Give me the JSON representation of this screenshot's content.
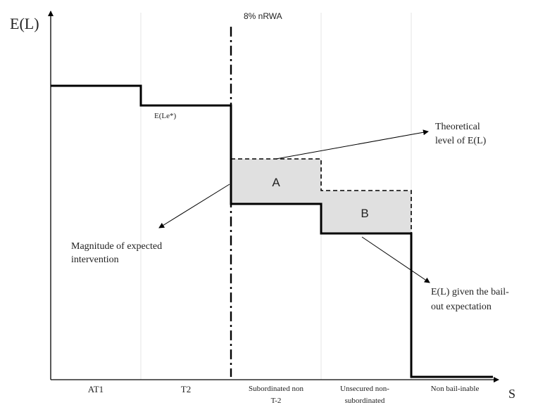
{
  "y_axis_label": "E(L)",
  "x_axis_label": "S",
  "threshold_label": "8% nRWA",
  "region_a_label": "A",
  "region_b_label": "B",
  "annotations": {
    "e_le_star": "E(Le*)",
    "theoretical_line1": "Theoretical",
    "theoretical_line2": "level of E(L)",
    "magnitude_line1": "Magnitude of expected",
    "magnitude_line2": "intervention",
    "bailout_line1": "E(L) given the bail-",
    "bailout_line2": "out expectation"
  },
  "categories": [
    {
      "line1": "AT1",
      "line2": ""
    },
    {
      "line1": "T2",
      "line2": ""
    },
    {
      "line1": "Subordinated non",
      "line2": "T-2"
    },
    {
      "line1": "Unsecured non-",
      "line2": "subordinated"
    },
    {
      "line1": "Non bail-inable",
      "line2": ""
    }
  ],
  "colors": {
    "line": "#000000",
    "shade": "#e0e0e0",
    "gridline": "#e6e6e6"
  }
}
